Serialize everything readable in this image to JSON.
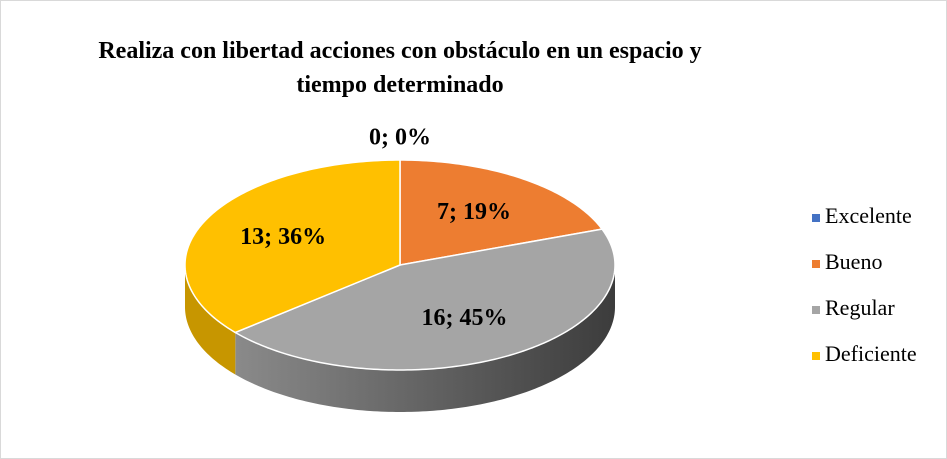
{
  "chart_data": {
    "type": "pie",
    "title": "Realiza con libertad acciones con obstáculo en un espacio y tiempo determinado",
    "categories": [
      "Excelente",
      "Bueno",
      "Regular",
      "Deficiente"
    ],
    "values": [
      0,
      7,
      16,
      13
    ],
    "value_labels": [
      "0; 0%",
      "7; 19%",
      "16; 45%",
      "13; 36%"
    ],
    "colors": [
      "#4472c4",
      "#ed7d31",
      "#a5a5a5",
      "#ffc000"
    ],
    "legend": "right"
  }
}
